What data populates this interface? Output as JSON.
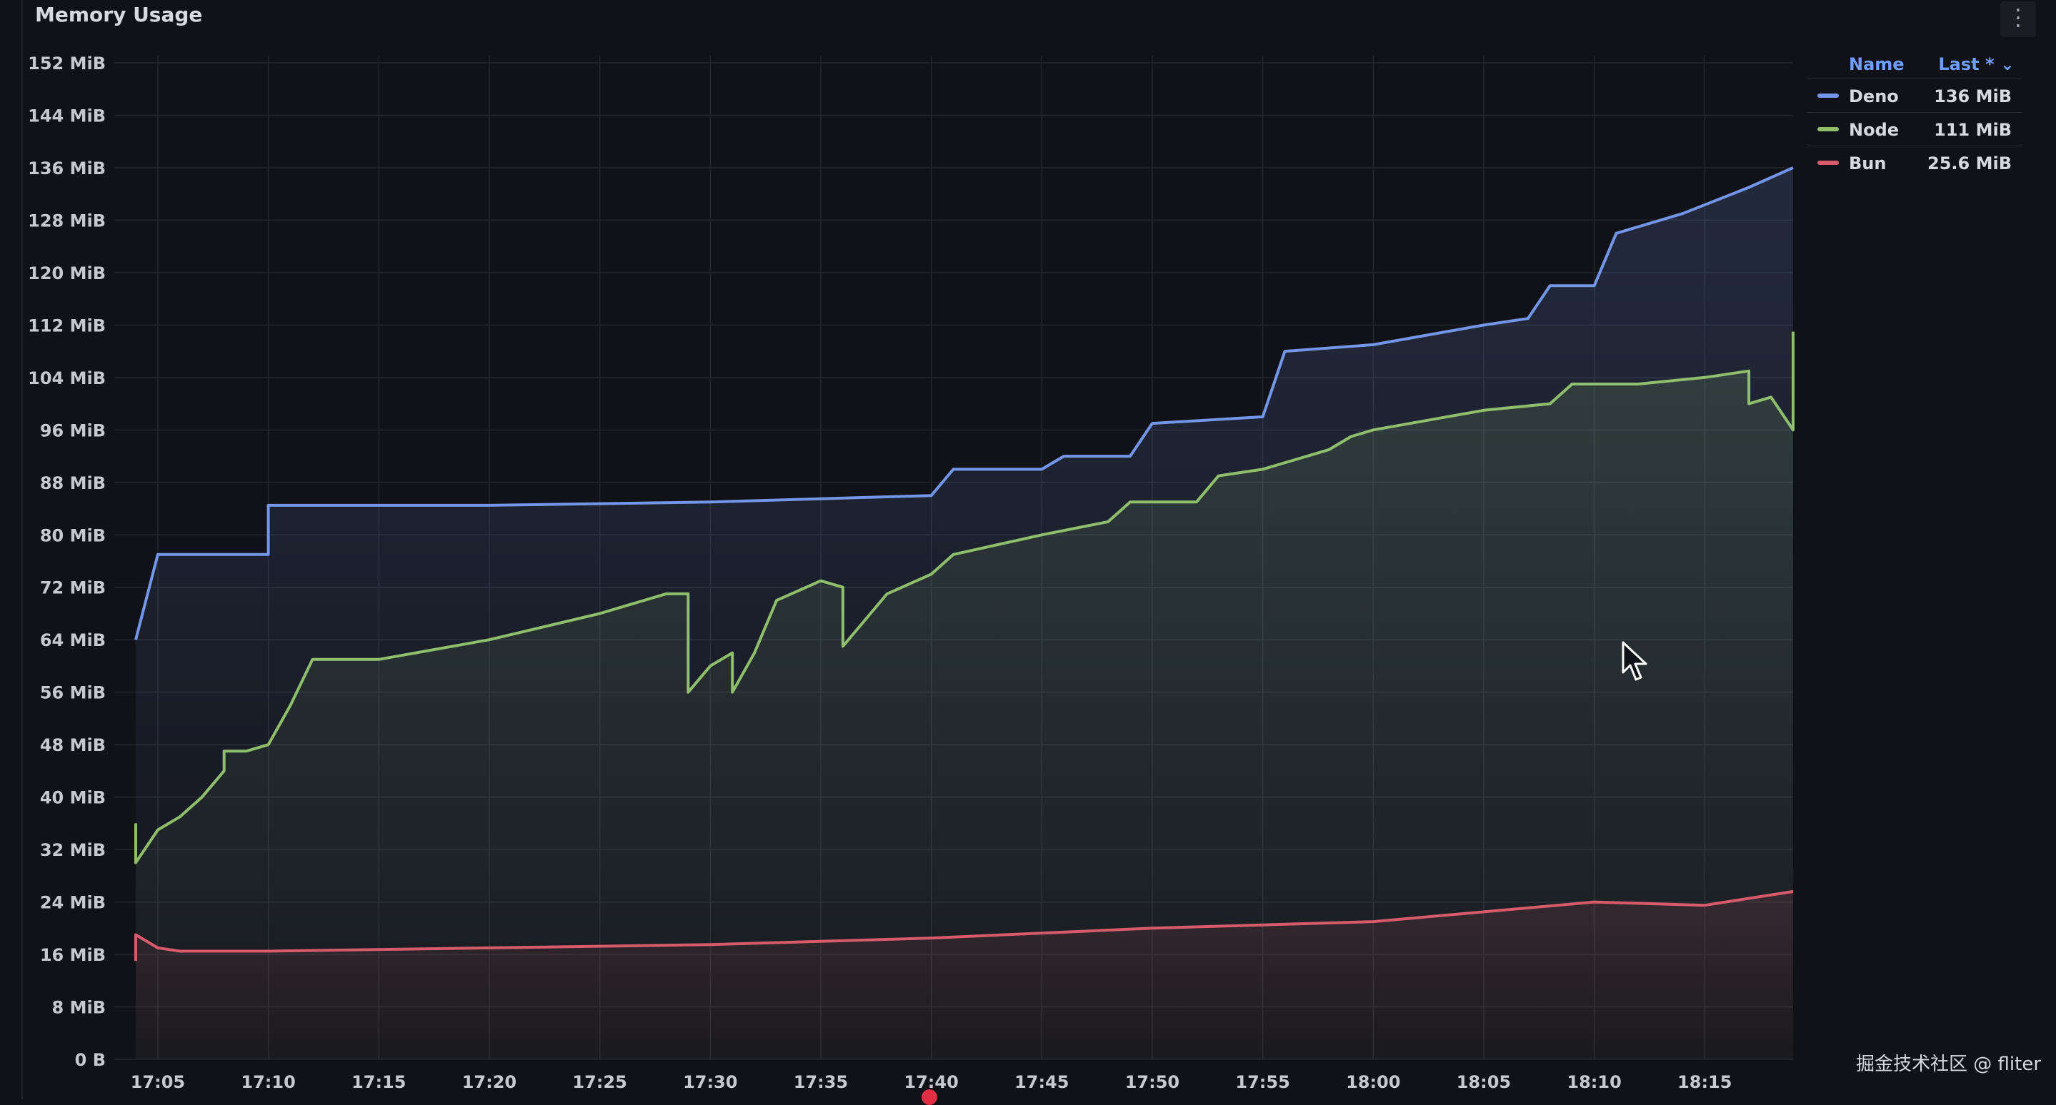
{
  "panel": {
    "title": "Memory Usage",
    "menu_icon": "vertical-ellipsis-icon"
  },
  "legend": {
    "name_header": "Name",
    "last_header": "Last * ⌄",
    "rows": [
      {
        "name": "Deno",
        "last": "136 MiB",
        "color": "#7396e8"
      },
      {
        "name": "Node",
        "last": "111 MiB",
        "color": "#8fbf6c"
      },
      {
        "name": "Bun",
        "last": "25.6 MiB",
        "color": "#d85b6b"
      }
    ]
  },
  "watermark": "掘金技术社区 @ fliter",
  "chart_data": {
    "type": "line",
    "title": "Memory Usage",
    "xlabel": "",
    "ylabel": "",
    "x_ticks": [
      "17:05",
      "17:10",
      "17:15",
      "17:20",
      "17:25",
      "17:30",
      "17:35",
      "17:40",
      "17:45",
      "17:50",
      "17:55",
      "18:00",
      "18:05",
      "18:10",
      "18:15"
    ],
    "y_ticks": [
      "0 B",
      "8 MiB",
      "16 MiB",
      "24 MiB",
      "32 MiB",
      "40 MiB",
      "48 MiB",
      "56 MiB",
      "64 MiB",
      "72 MiB",
      "80 MiB",
      "88 MiB",
      "96 MiB",
      "104 MiB",
      "112 MiB",
      "120 MiB",
      "128 MiB",
      "136 MiB",
      "144 MiB",
      "152 MiB"
    ],
    "ylim": [
      0,
      152
    ],
    "xlim": [
      "17:04",
      "18:19"
    ],
    "grid": true,
    "legend_position": "right",
    "series": [
      {
        "name": "Deno",
        "color": "#7396e8",
        "x": [
          "17:04",
          "17:04",
          "17:05",
          "17:10",
          "17:10",
          "17:20",
          "17:30",
          "17:40",
          "17:41",
          "17:45",
          "17:46",
          "17:49",
          "17:50",
          "17:55",
          "17:56",
          "18:00",
          "18:05",
          "18:07",
          "18:08",
          "18:10",
          "18:11",
          "18:14",
          "18:17",
          "18:19"
        ],
        "values": [
          64,
          64,
          77,
          77,
          84.5,
          84.5,
          85,
          86,
          90,
          90,
          92,
          92,
          97,
          98,
          108,
          109,
          112,
          113,
          118,
          118,
          126,
          129,
          133,
          136
        ]
      },
      {
        "name": "Node",
        "color": "#8fbf6c",
        "x": [
          "17:04",
          "17:04",
          "17:05",
          "17:06",
          "17:07",
          "17:07",
          "17:08",
          "17:08",
          "17:09",
          "17:10",
          "17:11",
          "17:12",
          "17:15",
          "17:20",
          "17:25",
          "17:28",
          "17:29",
          "17:29",
          "17:30",
          "17:31",
          "17:31",
          "17:32",
          "17:33",
          "17:35",
          "17:36",
          "17:36",
          "17:38",
          "17:40",
          "17:41",
          "17:45",
          "17:48",
          "17:49",
          "17:52",
          "17:53",
          "17:55",
          "17:58",
          "17:59",
          "18:00",
          "18:05",
          "18:08",
          "18:09",
          "18:12",
          "18:15",
          "18:17",
          "18:17",
          "18:18",
          "18:19",
          "18:19"
        ],
        "values": [
          36,
          30,
          35,
          37,
          40,
          40,
          44,
          47,
          47,
          48,
          54,
          61,
          61,
          64,
          68,
          71,
          71,
          56,
          60,
          62,
          56,
          62,
          70,
          73,
          72,
          63,
          71,
          74,
          77,
          80,
          82,
          85,
          85,
          89,
          90,
          93,
          95,
          96,
          99,
          100,
          103,
          103,
          104,
          105,
          100,
          101,
          96,
          111
        ]
      },
      {
        "name": "Bun",
        "color": "#d85b6b",
        "x": [
          "17:04",
          "17:04",
          "17:05",
          "17:06",
          "17:10",
          "17:20",
          "17:30",
          "17:40",
          "17:50",
          "17:55",
          "18:00",
          "18:05",
          "18:10",
          "18:15",
          "18:19"
        ],
        "values": [
          15,
          19,
          17,
          16.5,
          16.5,
          17,
          17.5,
          18.5,
          20,
          20.5,
          21,
          22.5,
          24,
          23.5,
          25.6
        ]
      }
    ]
  }
}
